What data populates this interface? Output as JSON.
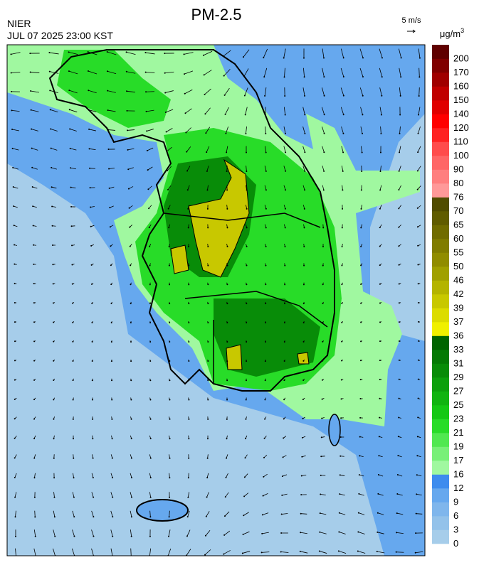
{
  "header": {
    "title": "PM-2.5",
    "agency": "NIER",
    "datetime": "JUL 07 2025 23:00 KST",
    "wind_scale": "5 m/s"
  },
  "colorbar": {
    "unit": {
      "base": "μg/m",
      "superscript": "3"
    },
    "ticks": [
      0,
      3,
      6,
      9,
      12,
      16,
      17,
      19,
      21,
      23,
      25,
      27,
      29,
      31,
      33,
      36,
      37,
      39,
      42,
      46,
      50,
      55,
      60,
      65,
      70,
      76,
      80,
      90,
      100,
      110,
      120,
      140,
      150,
      160,
      170,
      200
    ],
    "colors": [
      "#a6cdea",
      "#93c2ea",
      "#7fb6ec",
      "#66a8ee",
      "#3d8cee",
      "#a0f8a0",
      "#78f078",
      "#50e850",
      "#28dc28",
      "#14c814",
      "#10b410",
      "#0ca00c",
      "#088c08",
      "#047a04",
      "#006400",
      "#f0f000",
      "#dcdc00",
      "#c8c800",
      "#b4b400",
      "#a0a000",
      "#908c00",
      "#807c00",
      "#706c00",
      "#605c00",
      "#504c00",
      "#ff9999",
      "#ff7f7f",
      "#ff6666",
      "#ff4c4c",
      "#ff2222",
      "#ff0000",
      "#e00000",
      "#c00000",
      "#a00000",
      "#800000",
      "#600000"
    ]
  }
}
